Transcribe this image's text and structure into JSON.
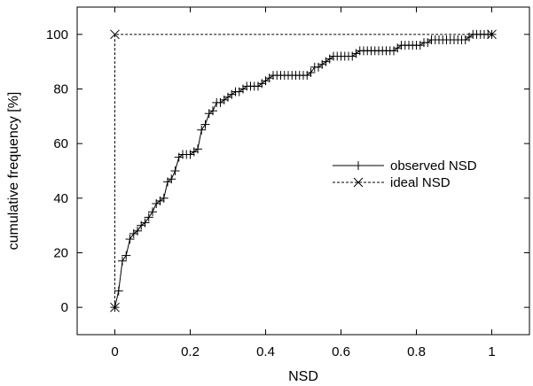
{
  "chart_data": {
    "type": "line",
    "title": "",
    "xlabel": "NSD",
    "ylabel": "cumulative frequency [%]",
    "xlim": [
      -0.1,
      1.1
    ],
    "ylim": [
      -10,
      110
    ],
    "x_ticks": [
      0,
      0.2,
      0.4,
      0.6,
      0.8,
      1
    ],
    "x_tick_labels": [
      "0",
      "0.2",
      "0.4",
      "0.6",
      "0.8",
      "1"
    ],
    "y_ticks": [
      0,
      20,
      40,
      60,
      80,
      100
    ],
    "y_tick_labels": [
      "0",
      "20",
      "40",
      "60",
      "80",
      "100"
    ],
    "grid": false,
    "legend_position": "right",
    "series": [
      {
        "name": "observed NSD",
        "marker": "plus",
        "line_style": "solid",
        "x": [
          0,
          0.01,
          0.02,
          0.03,
          0.04,
          0.05,
          0.06,
          0.07,
          0.08,
          0.09,
          0.1,
          0.11,
          0.12,
          0.13,
          0.14,
          0.15,
          0.16,
          0.17,
          0.18,
          0.19,
          0.2,
          0.21,
          0.22,
          0.23,
          0.24,
          0.25,
          0.26,
          0.27,
          0.28,
          0.29,
          0.3,
          0.31,
          0.32,
          0.33,
          0.34,
          0.35,
          0.36,
          0.37,
          0.38,
          0.39,
          0.4,
          0.41,
          0.42,
          0.43,
          0.44,
          0.45,
          0.46,
          0.47,
          0.48,
          0.49,
          0.5,
          0.51,
          0.52,
          0.53,
          0.54,
          0.55,
          0.56,
          0.57,
          0.58,
          0.59,
          0.6,
          0.61,
          0.62,
          0.63,
          0.64,
          0.65,
          0.66,
          0.67,
          0.68,
          0.69,
          0.7,
          0.71,
          0.72,
          0.73,
          0.74,
          0.75,
          0.76,
          0.77,
          0.78,
          0.79,
          0.8,
          0.81,
          0.82,
          0.83,
          0.84,
          0.85,
          0.86,
          0.87,
          0.88,
          0.89,
          0.9,
          0.91,
          0.92,
          0.93,
          0.94,
          0.95,
          0.96,
          0.97,
          0.98,
          0.99,
          1
        ],
        "y": [
          0,
          6,
          17,
          19,
          25,
          27,
          28,
          30,
          31,
          33,
          35,
          38,
          39,
          40,
          46,
          47,
          50,
          55,
          56,
          56,
          56,
          57,
          58,
          65,
          67,
          71,
          72,
          75,
          75,
          76,
          77,
          78,
          79,
          79,
          80,
          81,
          81,
          81,
          81,
          82,
          83,
          84,
          85,
          85,
          85,
          85,
          85,
          85,
          85,
          85,
          85,
          85,
          86,
          88,
          88,
          89,
          90,
          91,
          92,
          92,
          92,
          92,
          92,
          92,
          93,
          94,
          94,
          94,
          94,
          94,
          94,
          94,
          94,
          94,
          94,
          95,
          96,
          96,
          96,
          96,
          96,
          96,
          97,
          97,
          98,
          98,
          98,
          98,
          98,
          98,
          98,
          98,
          98,
          98,
          99,
          100,
          100,
          100,
          100,
          100,
          100
        ]
      },
      {
        "name": "ideal NSD",
        "marker": "cross",
        "line_style": "dashed",
        "x": [
          0,
          0,
          1
        ],
        "y": [
          0,
          100,
          100
        ]
      }
    ]
  }
}
